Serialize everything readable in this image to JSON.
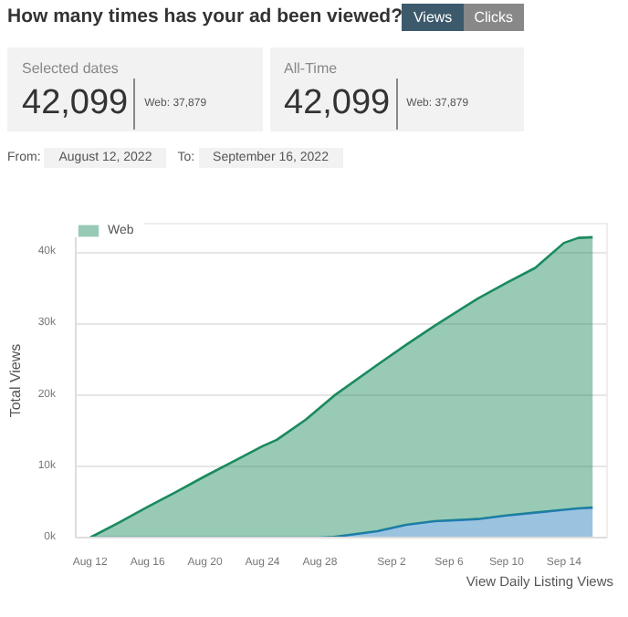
{
  "chart_data": {
    "type": "area",
    "stacked": true,
    "title": "How many times has your ad been viewed?",
    "ylabel": "Total Views",
    "annotations": [
      "Views",
      "Clicks",
      "Selected dates",
      "42,099",
      "Web: 37,879",
      "All-Time",
      "42,099",
      "Web: 37,879",
      "From:",
      "August 12, 2022",
      "To:",
      "September 16, 2022",
      "View Daily Listing Views"
    ],
    "x": [
      "2022-08-12",
      "2022-08-14",
      "2022-08-16",
      "2022-08-18",
      "2022-08-20",
      "2022-08-22",
      "2022-08-24",
      "2022-08-25",
      "2022-08-27",
      "2022-08-28",
      "2022-08-29",
      "2022-09-01",
      "2022-09-03",
      "2022-09-05",
      "2022-09-08",
      "2022-09-10",
      "2022-09-12",
      "2022-09-14",
      "2022-09-15",
      "2022-09-16"
    ],
    "series": [
      {
        "color": "#1f7ab8",
        "values": [
          0,
          0,
          0,
          0,
          0,
          0,
          0,
          0,
          0,
          0,
          100,
          900,
          1800,
          2300,
          2600,
          3100,
          3500,
          3900,
          4100,
          4200
        ]
      },
      {
        "name": "Web",
        "color": "#1a8a5e",
        "values": [
          0,
          2100,
          4300,
          6400,
          8600,
          10700,
          12800,
          13700,
          16500,
          18200,
          19800,
          23300,
          25200,
          27400,
          30900,
          32600,
          34300,
          37400,
          37900,
          37900
        ]
      }
    ],
    "xlim": [
      "2022-08-11",
      "2022-09-17"
    ],
    "xticks": [
      {
        "value": "2022-08-12",
        "label": "Aug 12"
      },
      {
        "value": "2022-08-16",
        "label": "Aug 16"
      },
      {
        "value": "2022-08-20",
        "label": "Aug 20"
      },
      {
        "value": "2022-08-24",
        "label": "Aug 24"
      },
      {
        "value": "2022-08-28",
        "label": "Aug 28"
      },
      {
        "value": "2022-09-02",
        "label": "Sep 2"
      },
      {
        "value": "2022-09-06",
        "label": "Sep 6"
      },
      {
        "value": "2022-09-10",
        "label": "Sep 10"
      },
      {
        "value": "2022-09-14",
        "label": "Sep 14"
      }
    ],
    "ylim": [
      0,
      44000
    ],
    "yticks": [
      {
        "value": 0,
        "label": "0k"
      },
      {
        "value": 10000,
        "label": "10k"
      },
      {
        "value": 20000,
        "label": "20k"
      },
      {
        "value": 30000,
        "label": "30k"
      },
      {
        "value": 40000,
        "label": "40k"
      }
    ],
    "grid": "y",
    "legend": "top left",
    "marker": "none",
    "line_style": "solid"
  }
}
